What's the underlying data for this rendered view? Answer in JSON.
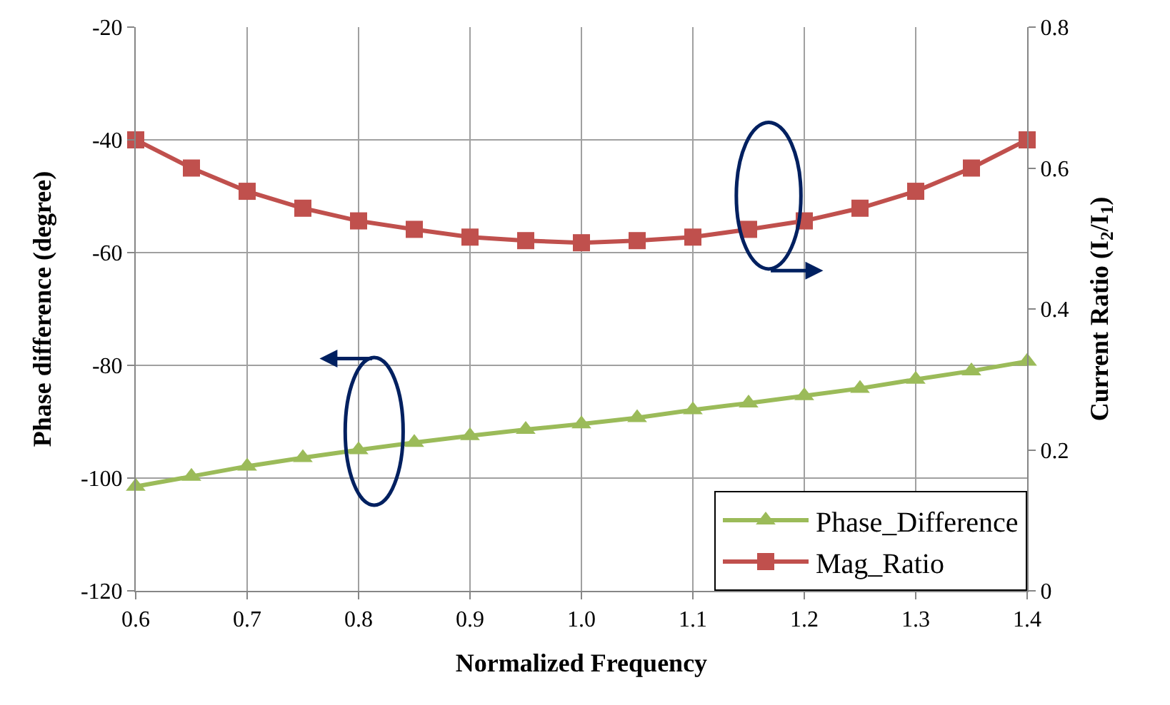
{
  "chart_data": {
    "type": "line",
    "xlabel": "Normalized Frequency",
    "ylabel": "Phase difference (degree)",
    "y2label": "Current Ratio (I$_{2}$/I$_{1}$)",
    "x": [
      0.6,
      0.65,
      0.7,
      0.75,
      0.8,
      0.85,
      0.9,
      0.95,
      1.0,
      1.05,
      1.1,
      1.15,
      1.2,
      1.25,
      1.3,
      1.35,
      1.4
    ],
    "series": [
      {
        "name": "Phase_Difference",
        "color": "#9bbb59",
        "marker": "triangle",
        "values": [
          -101.5,
          -99.7,
          -97.9,
          -96.4,
          -95.0,
          -93.7,
          -92.5,
          -91.4,
          -90.4,
          -89.3,
          -87.9,
          -86.7,
          -85.4,
          -84.1,
          -82.5,
          -81.0,
          -79.3
        ]
      },
      {
        "name": "Mag_Ratio",
        "color": "#c0504d",
        "marker": "square",
        "axis": "y2",
        "values": [
          0.64,
          0.6,
          0.567,
          0.543,
          0.525,
          0.513,
          0.502,
          0.497,
          0.494,
          0.497,
          0.502,
          0.513,
          0.525,
          0.543,
          0.567,
          0.6,
          0.64
        ]
      }
    ],
    "xlim": [
      0.6,
      1.4
    ],
    "xticks": [
      0.6,
      0.7,
      0.8,
      0.9,
      {
        "value": 1.0,
        "label": "1.0"
      },
      1.1,
      1.2,
      1.3,
      1.4
    ],
    "ylim": [
      -120,
      -20
    ],
    "yticks": [
      -120,
      -100,
      -80,
      -60,
      -40,
      -20
    ],
    "y2lim": [
      0,
      0.8
    ],
    "y2ticks": [
      0,
      0.2,
      0.4,
      0.6,
      0.8
    ],
    "grid": true,
    "legend": "bottom right",
    "line_style": "solid"
  }
}
